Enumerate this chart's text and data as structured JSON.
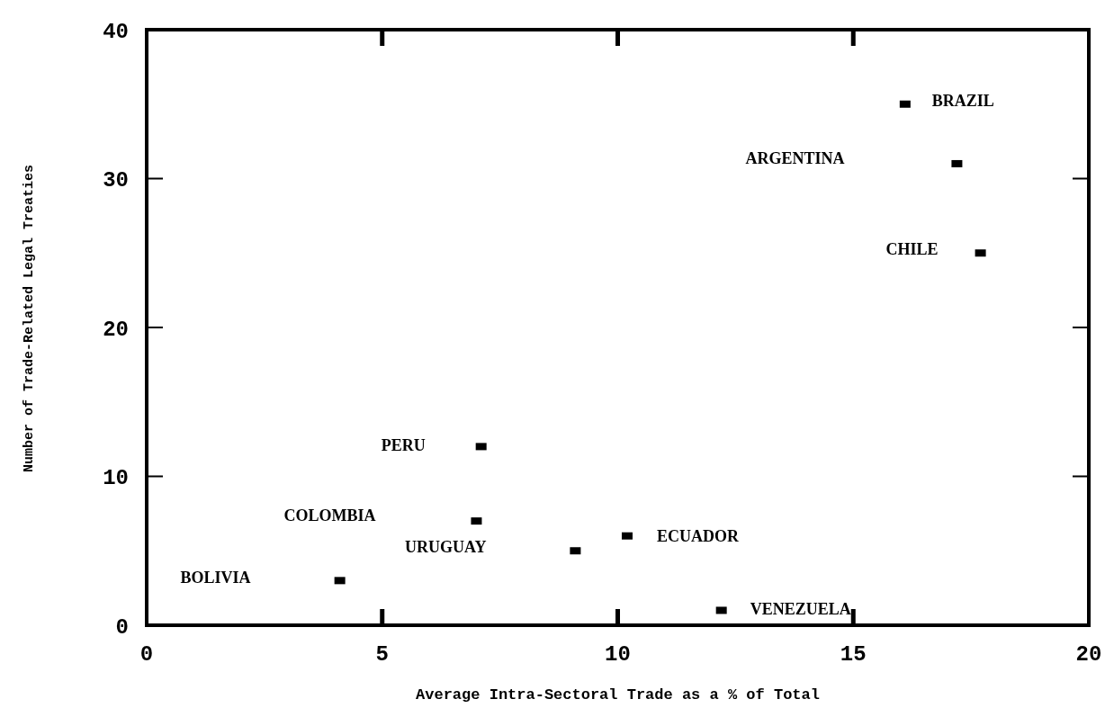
{
  "chart_data": {
    "type": "scatter",
    "xlabel": "Average Intra-Sectoral Trade as a % of Total",
    "ylabel": "Number of Trade-Related Legal Treaties",
    "x": [
      16.1,
      17.2,
      17.7,
      7.1,
      7.0,
      10.2,
      9.1,
      4.1,
      12.2
    ],
    "values": [
      35,
      31,
      25,
      12,
      7,
      6,
      5,
      3,
      1
    ],
    "color": "#000000",
    "marker": "square",
    "xlim": [
      0,
      20
    ],
    "xticks": [
      0,
      5,
      10,
      15,
      20
    ],
    "ylim": [
      0,
      40
    ],
    "yticks": [
      0,
      10,
      20,
      30,
      40
    ],
    "annotations": [
      "BRAZIL",
      "ARGENTINA",
      "CHILE",
      "PERU",
      "COLOMBIA",
      "ECUADOR",
      "URUGUAY",
      "BOLIVIA",
      "VENEZUELA"
    ]
  }
}
